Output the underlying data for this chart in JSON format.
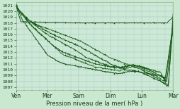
{
  "title": "Pression niveau de la mer( hPa )",
  "background_color": "#c8e8d0",
  "plot_bg_color": "#cce8d8",
  "grid_color": "#a0c8a8",
  "line_color_dark": "#1a5018",
  "line_color_mid": "#2a7028",
  "ylim": [
    1006.5,
    1021.5
  ],
  "yticks": [
    1007,
    1008,
    1009,
    1010,
    1011,
    1012,
    1013,
    1014,
    1015,
    1016,
    1017,
    1018,
    1019,
    1020,
    1021
  ],
  "xtick_labels": [
    "Ven",
    "Mer",
    "Sam",
    "Dim",
    "Lun",
    "Mar"
  ],
  "xtick_positions": [
    0,
    1,
    2,
    3,
    4,
    5
  ],
  "xlim": [
    0,
    5.0
  ]
}
